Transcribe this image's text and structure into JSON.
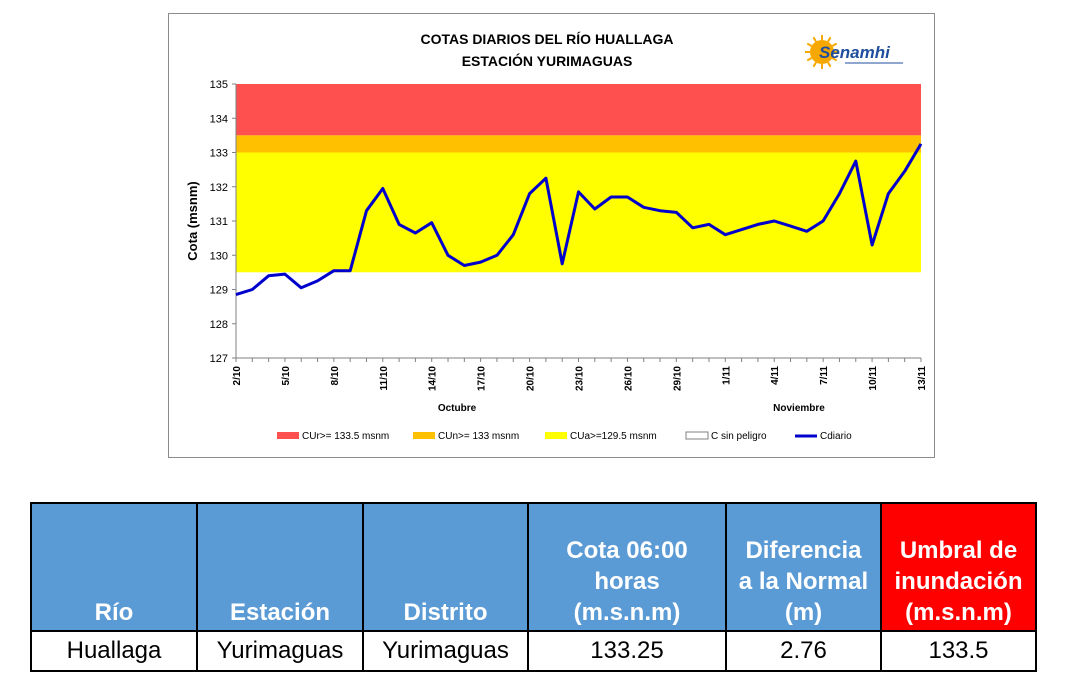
{
  "chart_data": {
    "type": "line",
    "title": "COTAS DIARIOS DEL RÍO HUALLAGA",
    "subtitle": "ESTACIÓN YURIMAGUAS",
    "logo_text": "Senamhi",
    "ylabel": "Cota (msnm)",
    "ylim": [
      127,
      135
    ],
    "yticks": [
      "127",
      "128",
      "129",
      "130",
      "131",
      "132",
      "133",
      "134",
      "135"
    ],
    "xticks": [
      "2/10",
      "5/10",
      "8/10",
      "11/10",
      "14/10",
      "17/10",
      "20/10",
      "23/10",
      "26/10",
      "29/10",
      "1/11",
      "4/11",
      "7/11",
      "10/11",
      "13/11"
    ],
    "month_labels": [
      "Octubre",
      "Noviembre"
    ],
    "grid": false,
    "legend_position": "bottom",
    "thresholds": [
      {
        "name": "CUr>= 133.5 msnm",
        "from": 133.5,
        "to": 135,
        "color": "#ff5050"
      },
      {
        "name": "CUn>= 133 msnm",
        "from": 133,
        "to": 133.5,
        "color": "#ffc000"
      },
      {
        "name": "CUa>=129.5 msnm",
        "from": 129.5,
        "to": 133,
        "color": "#ffff00"
      },
      {
        "name": "C sin peligro",
        "from": 127,
        "to": 129.5,
        "color": "#ffffff"
      }
    ],
    "series": [
      {
        "name": "Cdiario",
        "color": "#0000cc",
        "x": [
          "2/10",
          "3/10",
          "4/10",
          "5/10",
          "6/10",
          "7/10",
          "8/10",
          "9/10",
          "10/10",
          "11/10",
          "12/10",
          "13/10",
          "14/10",
          "15/10",
          "16/10",
          "17/10",
          "18/10",
          "19/10",
          "20/10",
          "21/10",
          "22/10",
          "23/10",
          "24/10",
          "25/10",
          "26/10",
          "27/10",
          "28/10",
          "29/10",
          "30/10",
          "31/10",
          "1/11",
          "2/11",
          "3/11",
          "4/11",
          "5/11",
          "6/11",
          "7/11",
          "8/11",
          "9/11",
          "10/11",
          "11/11",
          "12/11",
          "13/11"
        ],
        "values": [
          128.85,
          129.0,
          129.4,
          129.45,
          129.05,
          129.25,
          129.55,
          129.55,
          131.3,
          131.95,
          130.9,
          130.65,
          130.95,
          130.0,
          129.7,
          129.8,
          130.0,
          130.6,
          131.8,
          132.25,
          129.75,
          131.85,
          131.35,
          131.7,
          131.7,
          131.4,
          131.3,
          131.25,
          130.8,
          130.9,
          130.6,
          130.75,
          130.9,
          131.0,
          130.85,
          130.7,
          131.0,
          131.8,
          132.75,
          130.3,
          131.8,
          132.45,
          133.25
        ]
      }
    ]
  },
  "table": {
    "headers": [
      {
        "lines": [
          "Río"
        ],
        "color": "#5b9bd5"
      },
      {
        "lines": [
          "Estación"
        ],
        "color": "#5b9bd5"
      },
      {
        "lines": [
          "Distrito"
        ],
        "color": "#5b9bd5"
      },
      {
        "lines": [
          "Cota 06:00",
          "horas",
          "(m.s.n.m)"
        ],
        "color": "#5b9bd5"
      },
      {
        "lines": [
          "Diferencia",
          "a la Normal",
          "(m)"
        ],
        "color": "#5b9bd5"
      },
      {
        "lines": [
          "Umbral de",
          "inundación",
          "(m.s.n.m)"
        ],
        "color": "#ff0000"
      }
    ],
    "row": [
      "Huallaga",
      "Yurimaguas",
      "Yurimaguas",
      "133.25",
      "2.76",
      "133.5"
    ]
  }
}
